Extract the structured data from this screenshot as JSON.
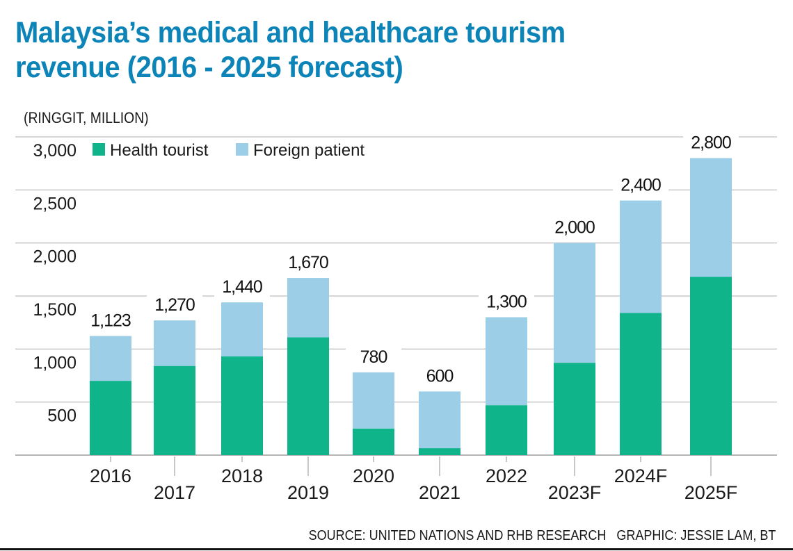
{
  "header": {
    "title_line1": "Malaysia’s medical and healthcare tourism",
    "title_line2": "revenue (2016 - 2025 forecast)",
    "unit_label": "(RINGGIT, MILLION)"
  },
  "footer": {
    "source": "SOURCE: UNITED NATIONS AND RHB RESEARCH   GRAPHIC: JESSIE LAM, BT"
  },
  "colors": {
    "title": "#0d84b8",
    "health_tourist": "#10b48b",
    "foreign_patient": "#9ccfe7",
    "gridline": "#c8c8c8",
    "text": "#1a1a1a"
  },
  "chart_data": {
    "type": "bar",
    "stacked": true,
    "title": "Malaysia’s medical and healthcare tourism revenue (2016 - 2025 forecast)",
    "xlabel": "",
    "ylabel": "(RINGGIT, MILLION)",
    "ylim": [
      0,
      3000
    ],
    "yticks": [
      500,
      1000,
      1500,
      2000,
      2500,
      3000
    ],
    "ytick_labels": [
      "500",
      "1,000",
      "1,500",
      "2,000",
      "2,500",
      "3,000"
    ],
    "grid": true,
    "legend_position": "top-left",
    "categories": [
      "2016",
      "2017",
      "2018",
      "2019",
      "2020",
      "2021",
      "2022",
      "2023F",
      "2024F",
      "2025F"
    ],
    "series": [
      {
        "name": "Health tourist",
        "values": [
          700,
          840,
          930,
          1110,
          250,
          65,
          470,
          870,
          1340,
          1680
        ]
      },
      {
        "name": "Foreign patient",
        "values": [
          423,
          430,
          510,
          560,
          530,
          535,
          830,
          1130,
          1060,
          1120
        ]
      }
    ],
    "totals": [
      1123,
      1270,
      1440,
      1670,
      780,
      600,
      1300,
      2000,
      2400,
      2800
    ],
    "total_labels": [
      "1,123",
      "1,270",
      "1,440",
      "1,670",
      "780",
      "600",
      "1,300",
      "2,000",
      "2,400",
      "2,800"
    ]
  }
}
